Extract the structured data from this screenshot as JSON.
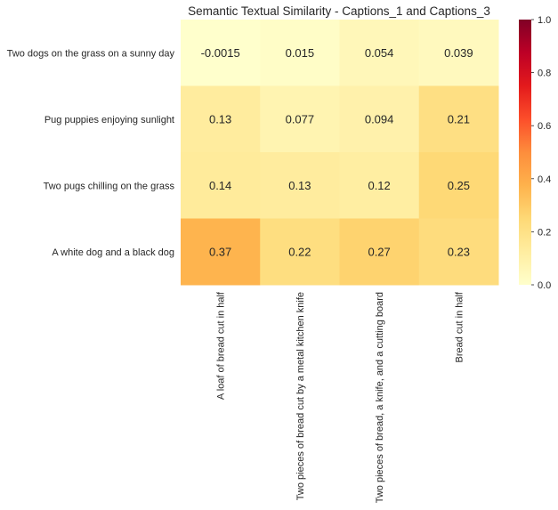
{
  "chart_data": {
    "type": "heatmap",
    "title": "Semantic Textual Similarity - Captions_1 and Captions_3",
    "rows": [
      "Two dogs on the grass on a sunny day",
      "Pug puppies enjoying sunlight",
      "Two pugs chilling on the grass",
      "A white dog and a black dog"
    ],
    "columns": [
      "A loaf of bread cut in half",
      "Two pieces of bread cut by a metal kitchen knife",
      "Two pieces of bread, a knife, and a cutting board",
      "Bread cut in half"
    ],
    "values": [
      [
        -0.0015,
        0.015,
        0.054,
        0.039
      ],
      [
        0.13,
        0.077,
        0.094,
        0.21
      ],
      [
        0.14,
        0.13,
        0.12,
        0.25
      ],
      [
        0.37,
        0.22,
        0.27,
        0.23
      ]
    ],
    "value_labels": [
      [
        "-0.0015",
        "0.015",
        "0.054",
        "0.039"
      ],
      [
        "0.13",
        "0.077",
        "0.094",
        "0.21"
      ],
      [
        "0.14",
        "0.13",
        "0.12",
        "0.25"
      ],
      [
        "0.37",
        "0.22",
        "0.27",
        "0.23"
      ]
    ],
    "colorscale": "YlOrRd",
    "colorscale_stops": [
      "#ffffcc",
      "#ffeda0",
      "#fed976",
      "#feb24c",
      "#fd8d3c",
      "#fc4e2a",
      "#e31a1c",
      "#bd0026",
      "#800026"
    ],
    "vmin": 0.0,
    "vmax": 1.0,
    "colorbar_ticks": [
      0.0,
      0.2,
      0.4,
      0.6,
      0.8,
      1.0
    ],
    "colorbar_tick_labels": [
      "0.0",
      "0.2",
      "0.4",
      "0.6",
      "0.8",
      "1.0"
    ],
    "legend_position": "right"
  }
}
